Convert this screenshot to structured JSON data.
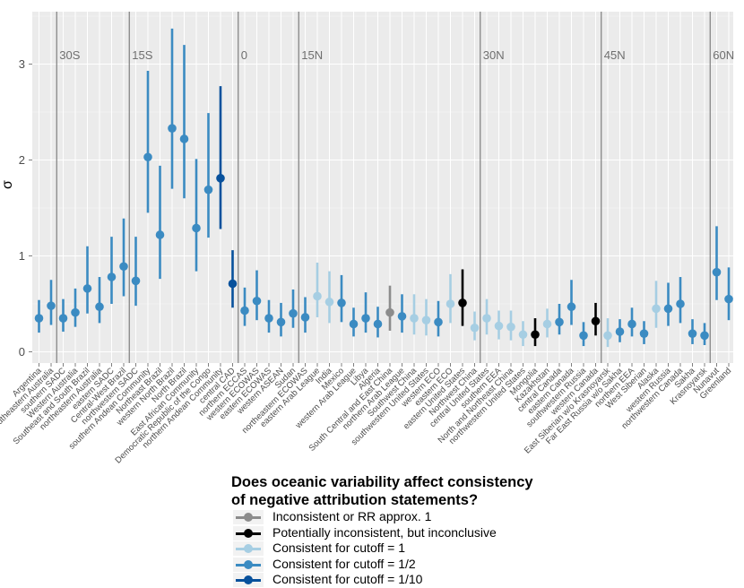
{
  "chart_data": {
    "type": "scatter",
    "title": "",
    "xlabel": "",
    "ylabel": "σ",
    "ylim": [
      -0.1,
      3.5
    ],
    "yticks": [
      0,
      1,
      2,
      3
    ],
    "grid": true,
    "latitude_markers": [
      {
        "label": "30S",
        "after_index": 0
      },
      {
        "label": "15S",
        "after_index": 6
      },
      {
        "label": "0",
        "after_index": 15
      },
      {
        "label": "15N",
        "after_index": 20
      },
      {
        "label": "30N",
        "after_index": 35
      },
      {
        "label": "45N",
        "after_index": 45
      },
      {
        "label": "60N",
        "after_index": 54
      }
    ],
    "status_colors": {
      "inconsistent": "#8c8c8c",
      "inconclusive": "#000000",
      "c1": "#a6cee3",
      "c2": "#3b8bc2",
      "c10": "#08519c"
    },
    "categories": [
      "Argentina",
      "southeastern Australia",
      "southern SADC",
      "Western Australia",
      "Southeast and South Brazil",
      "northeastern Australia",
      "eastern SADC",
      "Central-West Brazil",
      "northwestern SADC",
      "southern Andean Community",
      "Northeast Brazil",
      "western North Brazil",
      "North Brazil",
      "East African Community",
      "Democratic Republic of the Congo",
      "northern Andean Community",
      "central CAD",
      "northern ECCAS",
      "western ECOWAS",
      "eastern ECOWAS",
      "western ASEAN",
      "Sudan",
      "northeastern ECOWAS",
      "eastern Arab League",
      "India",
      "Mexico",
      "western Arab League",
      "Libya",
      "Algeria",
      "South Central and East China",
      "northern Arab League",
      "Southwest China",
      "southwestern United States",
      "western ECO",
      "eastern ECO",
      "eastern United States",
      "Northwest China",
      "central United States",
      "southern EEA",
      "North and Northeast China",
      "northwestern United States",
      "Mongolia",
      "Kazakhstan",
      "central Canada",
      "eastern Canada",
      "southwestern Russia",
      "western Canada",
      "East Siberian w/o Krasnoyarsk",
      "Far East Russia w/o Sakha",
      "northern EEA",
      "West Siberian",
      "Alaska",
      "western Russia",
      "northwestern Canada",
      "Sakha",
      "Krasnoyarsk",
      "Nunavut",
      "Greenland"
    ],
    "values": [
      0.35,
      0.48,
      0.35,
      0.41,
      0.66,
      0.47,
      0.78,
      0.89,
      0.74,
      2.03,
      1.22,
      2.33,
      2.22,
      1.29,
      1.69,
      1.81,
      0.71,
      0.43,
      0.53,
      0.35,
      0.31,
      0.4,
      0.36,
      0.58,
      0.52,
      0.51,
      0.29,
      0.35,
      0.29,
      0.41,
      0.37,
      0.35,
      0.33,
      0.31,
      0.5,
      0.51,
      0.25,
      0.35,
      0.27,
      0.26,
      0.18,
      0.18,
      0.29,
      0.31,
      0.47,
      0.17,
      0.32,
      0.17,
      0.21,
      0.29,
      0.19,
      0.45,
      0.45,
      0.5,
      0.19,
      0.17,
      0.83,
      0.55
    ],
    "lower": [
      0.2,
      0.28,
      0.21,
      0.26,
      0.4,
      0.3,
      0.5,
      0.58,
      0.48,
      1.45,
      0.76,
      1.7,
      1.6,
      0.84,
      1.19,
      1.28,
      0.46,
      0.27,
      0.33,
      0.2,
      0.16,
      0.25,
      0.2,
      0.36,
      0.3,
      0.31,
      0.16,
      0.2,
      0.15,
      0.22,
      0.2,
      0.18,
      0.17,
      0.16,
      0.3,
      0.27,
      0.12,
      0.18,
      0.13,
      0.12,
      0.06,
      0.06,
      0.15,
      0.18,
      0.28,
      0.06,
      0.17,
      0.05,
      0.1,
      0.16,
      0.08,
      0.25,
      0.27,
      0.3,
      0.08,
      0.07,
      0.54,
      0.33
    ],
    "upper": [
      0.54,
      0.75,
      0.55,
      0.66,
      1.1,
      0.78,
      1.2,
      1.39,
      1.2,
      2.93,
      1.94,
      3.37,
      3.2,
      2.01,
      2.49,
      2.77,
      1.06,
      0.67,
      0.85,
      0.54,
      0.51,
      0.65,
      0.57,
      0.93,
      0.84,
      0.8,
      0.46,
      0.62,
      0.47,
      0.69,
      0.6,
      0.6,
      0.55,
      0.53,
      0.81,
      0.86,
      0.42,
      0.55,
      0.43,
      0.43,
      0.32,
      0.35,
      0.45,
      0.5,
      0.75,
      0.31,
      0.51,
      0.35,
      0.34,
      0.46,
      0.32,
      0.74,
      0.72,
      0.78,
      0.34,
      0.3,
      1.31,
      0.88
    ],
    "status": [
      "c2",
      "c2",
      "c2",
      "c2",
      "c2",
      "c2",
      "c2",
      "c2",
      "c2",
      "c2",
      "c2",
      "c2",
      "c2",
      "c2",
      "c2",
      "c10",
      "c10",
      "c2",
      "c2",
      "c2",
      "c2",
      "c2",
      "c2",
      "c1",
      "c1",
      "c2",
      "c2",
      "c2",
      "c2",
      "inconsistent",
      "c2",
      "c1",
      "c1",
      "c2",
      "c1",
      "inconclusive",
      "c1",
      "c1",
      "c1",
      "c1",
      "c1",
      "inconclusive",
      "c1",
      "c2",
      "c2",
      "c2",
      "inconclusive",
      "c1",
      "c2",
      "c2",
      "c2",
      "c1",
      "c2",
      "c2",
      "c2",
      "c2",
      "c2",
      "c2"
    ]
  },
  "legend": {
    "title_line1": "Does oceanic variability affect consistency",
    "title_line2": "of negative attribution statements?",
    "items": [
      {
        "label": "Inconsistent or RR approx. 1",
        "color": "#8c8c8c"
      },
      {
        "label": "Potentially inconsistent, but inconclusive",
        "color": "#000000"
      },
      {
        "label": "Consistent for cutoff = 1",
        "color": "#a6cee3"
      },
      {
        "label": "Consistent for cutoff = 1/2",
        "color": "#3b8bc2"
      },
      {
        "label": "Consistent for cutoff = 1/10",
        "color": "#08519c"
      }
    ]
  }
}
